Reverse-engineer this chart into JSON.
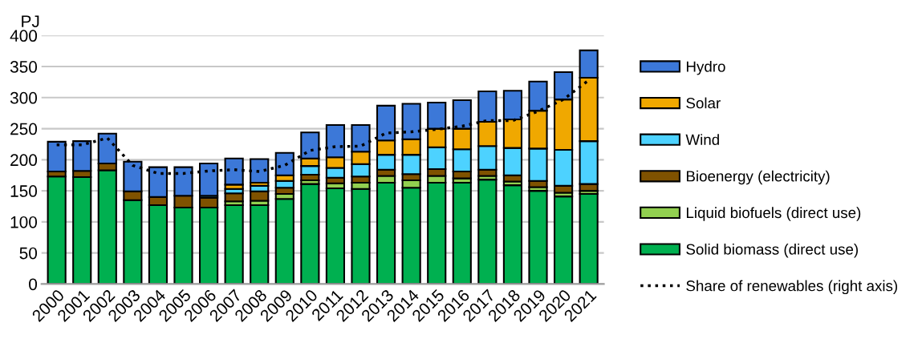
{
  "chart_data": {
    "type": "bar",
    "stacked": true,
    "ylabel": "PJ",
    "categories": [
      "2000",
      "2001",
      "2002",
      "2003",
      "2004",
      "2005",
      "2006",
      "2007",
      "2008",
      "2009",
      "2010",
      "2011",
      "2012",
      "2013",
      "2014",
      "2015",
      "2016",
      "2017",
      "2018",
      "2019",
      "2020",
      "2021"
    ],
    "series": [
      {
        "name": "Solid biomass (direct use)",
        "color": "#00b050",
        "values": [
          173,
          172,
          183,
          135,
          127,
          123,
          123,
          127,
          127,
          137,
          161,
          154,
          153,
          163,
          155,
          163,
          163,
          168,
          159,
          150,
          141,
          145
        ]
      },
      {
        "name": "Liquid biofuels (direct use)",
        "color": "#92d050",
        "values": [
          null,
          null,
          null,
          null,
          null,
          null,
          null,
          6,
          7,
          8,
          6,
          8,
          10,
          11,
          12,
          11,
          7,
          6,
          6,
          6,
          6,
          5
        ]
      },
      {
        "name": "Bioenergy (electricity)",
        "color": "#7f5200",
        "values": [
          8,
          10,
          11,
          14,
          13,
          19,
          16,
          13,
          15,
          10,
          9,
          9,
          10,
          10,
          10,
          11,
          11,
          10,
          10,
          10,
          11,
          11
        ]
      },
      {
        "name": "Wind",
        "color": "#4dd2ff",
        "values": [
          null,
          null,
          null,
          null,
          null,
          null,
          3,
          7,
          9,
          11,
          14,
          16,
          20,
          24,
          31,
          35,
          36,
          38,
          44,
          52,
          58,
          69
        ]
      },
      {
        "name": "Solar",
        "color": "#f0a800",
        "values": [
          null,
          null,
          null,
          null,
          null,
          null,
          null,
          7,
          5,
          9,
          12,
          17,
          20,
          23,
          25,
          30,
          33,
          39,
          46,
          61,
          81,
          102
        ]
      },
      {
        "name": "Hydro",
        "color": "#3c78d8",
        "values": [
          48,
          48,
          48,
          48,
          48,
          46,
          52,
          42,
          38,
          36,
          42,
          52,
          43,
          56,
          57,
          42,
          46,
          49,
          46,
          47,
          44,
          44
        ]
      },
      {
        "name": "Share of renewables (right axis)",
        "type": "line",
        "color": "#000000",
        "line_style": "dotted",
        "values": [
          224,
          224,
          235,
          191,
          178,
          178,
          182,
          184,
          181,
          191,
          215,
          221,
          222,
          243,
          245,
          249,
          254,
          263,
          263,
          278,
          297,
          328
        ]
      }
    ],
    "ylim": [
      0,
      400
    ],
    "yticks": [
      0,
      50,
      100,
      150,
      200,
      250,
      300,
      350,
      400
    ],
    "grid": "y",
    "legend": "right"
  }
}
